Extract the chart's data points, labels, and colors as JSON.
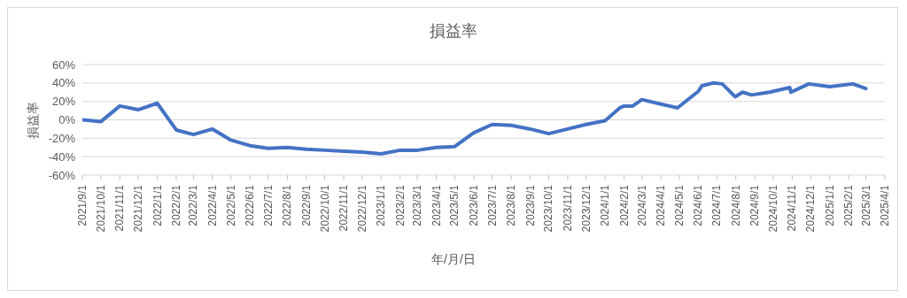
{
  "chart_data": {
    "type": "line",
    "title": "損益率",
    "xlabel": "年/月/日",
    "ylabel": "損益率",
    "x": [
      "2021-09-01",
      "2021-10-01",
      "2021-11-01",
      "2021-12-01",
      "2022-01-01",
      "2022-02-01",
      "2022-03-01",
      "2022-04-01",
      "2022-05-01",
      "2022-06-01",
      "2022-07-01",
      "2022-08-01",
      "2022-09-01",
      "2022-10-01",
      "2022-11-01",
      "2022-12-01",
      "2023-01-01",
      "2023-02-01",
      "2023-03-01",
      "2023-04-01",
      "2023-05-01",
      "2023-06-01",
      "2023-07-01",
      "2023-08-01",
      "2023-09-01",
      "2023-10-01",
      "2023-11-01",
      "2023-12-01",
      "2024-01-01",
      "2024-01-25",
      "2024-02-01",
      "2024-02-15",
      "2024-03-01",
      "2024-04-01",
      "2024-04-28",
      "2024-06-01",
      "2024-06-07",
      "2024-06-25",
      "2024-07-10",
      "2024-07-31",
      "2024-08-12",
      "2024-08-27",
      "2024-09-25",
      "2024-10-28",
      "2024-10-30",
      "2024-11-28",
      "2025-01-01",
      "2025-02-08",
      "2025-03-01"
    ],
    "series": [
      {
        "color": "#4472c4",
        "values": [
          0,
          -2,
          15,
          11,
          18,
          -11,
          -16,
          -10,
          -22,
          -28,
          -31,
          -30,
          -32,
          -33,
          -34,
          -35,
          -37,
          -33,
          -33,
          -30,
          -29,
          -14,
          -5,
          -6,
          -10,
          -15,
          -10,
          -5,
          -1,
          13,
          15,
          15,
          22,
          17,
          13,
          31,
          37,
          40,
          39,
          25,
          30,
          27,
          30,
          35,
          30,
          39,
          36,
          39,
          34
        ]
      }
    ],
    "xlim": [
      "2021-09-01",
      "2025-04-01"
    ],
    "xticks": [
      {
        "value": "2021-09-01",
        "label": "2021/9/1"
      },
      {
        "value": "2021-10-01",
        "label": "2021/10/1"
      },
      {
        "value": "2021-11-01",
        "label": "2021/11/1"
      },
      {
        "value": "2021-12-01",
        "label": "2021/12/1"
      },
      {
        "value": "2022-01-01",
        "label": "2022/1/1"
      },
      {
        "value": "2022-02-01",
        "label": "2022/2/1"
      },
      {
        "value": "2022-03-01",
        "label": "2022/3/1"
      },
      {
        "value": "2022-04-01",
        "label": "2022/4/1"
      },
      {
        "value": "2022-05-01",
        "label": "2022/5/1"
      },
      {
        "value": "2022-06-01",
        "label": "2022/6/1"
      },
      {
        "value": "2022-07-01",
        "label": "2022/7/1"
      },
      {
        "value": "2022-08-01",
        "label": "2022/8/1"
      },
      {
        "value": "2022-09-01",
        "label": "2022/9/1"
      },
      {
        "value": "2022-10-01",
        "label": "2022/10/1"
      },
      {
        "value": "2022-11-01",
        "label": "2022/11/1"
      },
      {
        "value": "2022-12-01",
        "label": "2022/12/1"
      },
      {
        "value": "2023-01-01",
        "label": "2023/1/1"
      },
      {
        "value": "2023-02-01",
        "label": "2023/2/1"
      },
      {
        "value": "2023-03-01",
        "label": "2023/3/1"
      },
      {
        "value": "2023-04-01",
        "label": "2023/4/1"
      },
      {
        "value": "2023-05-01",
        "label": "2023/5/1"
      },
      {
        "value": "2023-06-01",
        "label": "2023/6/1"
      },
      {
        "value": "2023-07-01",
        "label": "2023/7/1"
      },
      {
        "value": "2023-08-01",
        "label": "2023/8/1"
      },
      {
        "value": "2023-09-01",
        "label": "2023/9/1"
      },
      {
        "value": "2023-10-01",
        "label": "2023/10/1"
      },
      {
        "value": "2023-11-01",
        "label": "2023/11/1"
      },
      {
        "value": "2023-12-01",
        "label": "2023/12/1"
      },
      {
        "value": "2024-01-01",
        "label": "2024/1/1"
      },
      {
        "value": "2024-02-01",
        "label": "2024/2/1"
      },
      {
        "value": "2024-03-01",
        "label": "2024/3/1"
      },
      {
        "value": "2024-04-01",
        "label": "2024/4/1"
      },
      {
        "value": "2024-05-01",
        "label": "2024/5/1"
      },
      {
        "value": "2024-06-01",
        "label": "2024/6/1"
      },
      {
        "value": "2024-07-01",
        "label": "2024/7/1"
      },
      {
        "value": "2024-08-01",
        "label": "2024/8/1"
      },
      {
        "value": "2024-09-01",
        "label": "2024/9/1"
      },
      {
        "value": "2024-10-01",
        "label": "2024/10/1"
      },
      {
        "value": "2024-11-01",
        "label": "2024/11/1"
      },
      {
        "value": "2024-12-01",
        "label": "2024/12/1"
      },
      {
        "value": "2025-01-01",
        "label": "2025/1/1"
      },
      {
        "value": "2025-02-01",
        "label": "2025/2/1"
      },
      {
        "value": "2025-03-01",
        "label": "2025/3/1"
      },
      {
        "value": "2025-04-01",
        "label": "2025/4/1"
      }
    ],
    "ylim": [
      -60,
      60
    ],
    "yticks": [
      {
        "value": -60,
        "label": "-60%"
      },
      {
        "value": -40,
        "label": "-40%"
      },
      {
        "value": -20,
        "label": "-20%"
      },
      {
        "value": 0,
        "label": "0%"
      },
      {
        "value": 20,
        "label": "20%"
      },
      {
        "value": 40,
        "label": "40%"
      },
      {
        "value": 60,
        "label": "60%"
      }
    ],
    "grid": "y",
    "marker": "none",
    "line_style": "solid"
  }
}
